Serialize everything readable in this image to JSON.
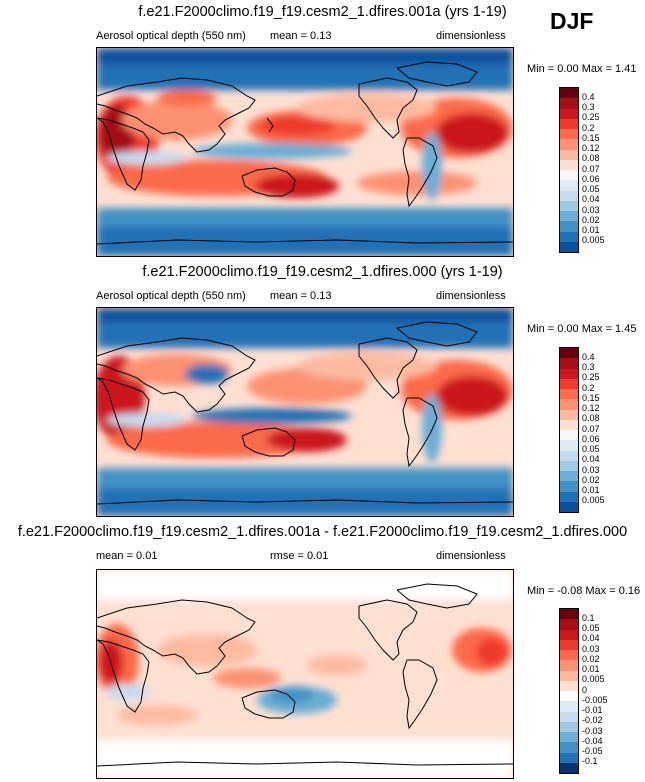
{
  "season": "DJF",
  "panels": [
    {
      "title": "f.e21.F2000climo.f19_f19.cesm2_1.dfires.001a (yrs 1-19)",
      "left_label": "Aerosol optical depth (550 nm)",
      "center_label": "mean =  0.13",
      "right_label": "dimensionless",
      "minmax": "Min =  0.00 Max =  1.41",
      "colorbar": {
        "labels": [
          "0.4",
          "0.3",
          "0.25",
          "0.2",
          "0.15",
          "0.12",
          "0.08",
          "0.07",
          "0.06",
          "0.05",
          "0.04",
          "0.03",
          "0.02",
          "0.01",
          "0.005"
        ],
        "colors": [
          "#67000d",
          "#a50f15",
          "#cb181d",
          "#ef3b2c",
          "#fb6a4a",
          "#fc9272",
          "#fcbba1",
          "#fee0d2",
          "#f7f7f7",
          "#deebf7",
          "#c6dbef",
          "#9ecae1",
          "#6baed6",
          "#4292c6",
          "#2171b5",
          "#08519c"
        ]
      }
    },
    {
      "title": "f.e21.F2000climo.f19_f19.cesm2_1.dfires.000 (yrs 1-19)",
      "left_label": "Aerosol optical depth (550 nm)",
      "center_label": "mean =  0.13",
      "right_label": "dimensionless",
      "minmax": "Min =  0.00 Max =  1.45",
      "colorbar": {
        "labels": [
          "0.4",
          "0.3",
          "0.25",
          "0.2",
          "0.15",
          "0.12",
          "0.08",
          "0.07",
          "0.06",
          "0.05",
          "0.04",
          "0.03",
          "0.02",
          "0.01",
          "0.005"
        ],
        "colors": [
          "#67000d",
          "#a50f15",
          "#cb181d",
          "#ef3b2c",
          "#fb6a4a",
          "#fc9272",
          "#fcbba1",
          "#fee0d2",
          "#f7f7f7",
          "#deebf7",
          "#c6dbef",
          "#9ecae1",
          "#6baed6",
          "#4292c6",
          "#2171b5",
          "#08519c"
        ]
      }
    },
    {
      "title": "f.e21.F2000climo.f19_f19.cesm2_1.dfires.001a - f.e21.F2000climo.f19_f19.cesm2_1.dfires.000",
      "left_label": "mean =  0.01",
      "center_label": "rmse =  0.01",
      "right_label": "dimensionless",
      "minmax": "Min = -0.08 Max =  0.16",
      "colorbar": {
        "labels": [
          "0.1",
          "0.05",
          "0.04",
          "0.03",
          "0.02",
          "0.01",
          "0.005",
          "0",
          "-0.005",
          "-0.01",
          "-0.02",
          "-0.03",
          "-0.04",
          "-0.05",
          "-0.1"
        ],
        "colors": [
          "#67000d",
          "#a50f15",
          "#cb181d",
          "#ef3b2c",
          "#fb6a4a",
          "#fc9272",
          "#fcbba1",
          "#fee0d2",
          "#ffffff",
          "#deebf7",
          "#c6dbef",
          "#9ecae1",
          "#6baed6",
          "#4292c6",
          "#2171b5",
          "#08306b"
        ]
      }
    }
  ],
  "chart_data": [
    {
      "type": "heatmap",
      "title": "f.e21.F2000climo.f19_f19.cesm2_1.dfires.001a (yrs 1-19)",
      "variable": "Aerosol optical depth (550 nm)",
      "season": "DJF",
      "units": "dimensionless",
      "mean": 0.13,
      "min": 0.0,
      "max": 1.41,
      "levels": [
        0.005,
        0.01,
        0.02,
        0.03,
        0.04,
        0.05,
        0.06,
        0.07,
        0.08,
        0.12,
        0.15,
        0.2,
        0.25,
        0.3,
        0.4
      ]
    },
    {
      "type": "heatmap",
      "title": "f.e21.F2000climo.f19_f19.cesm2_1.dfires.000 (yrs 1-19)",
      "variable": "Aerosol optical depth (550 nm)",
      "season": "DJF",
      "units": "dimensionless",
      "mean": 0.13,
      "min": 0.0,
      "max": 1.45,
      "levels": [
        0.005,
        0.01,
        0.02,
        0.03,
        0.04,
        0.05,
        0.06,
        0.07,
        0.08,
        0.12,
        0.15,
        0.2,
        0.25,
        0.3,
        0.4
      ]
    },
    {
      "type": "heatmap",
      "title": "f.e21.F2000climo.f19_f19.cesm2_1.dfires.001a - f.e21.F2000climo.f19_f19.cesm2_1.dfires.000",
      "season": "DJF",
      "units": "dimensionless",
      "mean": 0.01,
      "rmse": 0.01,
      "min": -0.08,
      "max": 0.16,
      "levels": [
        -0.1,
        -0.05,
        -0.04,
        -0.03,
        -0.02,
        -0.01,
        -0.005,
        0,
        0.005,
        0.01,
        0.02,
        0.03,
        0.04,
        0.05,
        0.1
      ]
    }
  ]
}
